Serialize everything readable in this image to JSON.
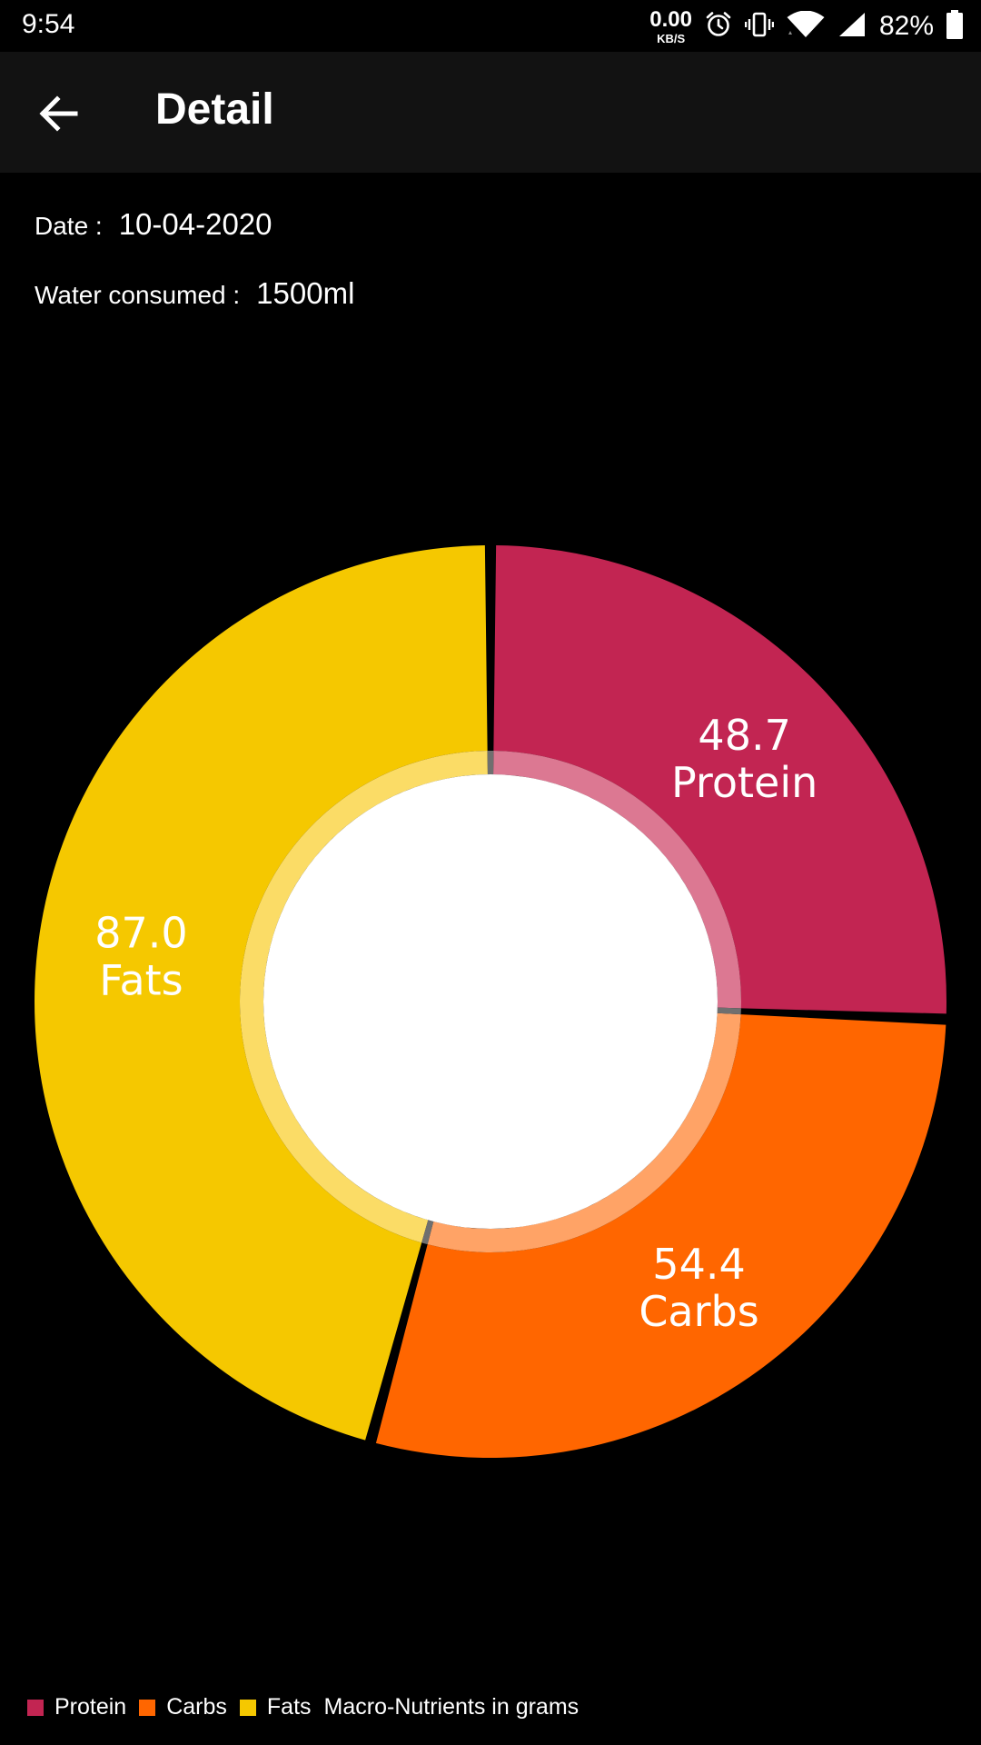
{
  "status_bar": {
    "time": "9:54",
    "net_speed_value": "0.00",
    "net_speed_unit": "KB/S",
    "battery": "82%",
    "icons": [
      "alarm-icon",
      "vibrate-icon",
      "wifi-icon",
      "signal-icon",
      "battery-icon"
    ]
  },
  "app_bar": {
    "title": "Detail",
    "back_icon": "arrow-left-icon"
  },
  "info": {
    "date_label": "Date :",
    "date_value": "10-04-2020",
    "water_label": "Water consumed :",
    "water_value": "1500ml"
  },
  "chart_data": {
    "type": "pie",
    "donut": true,
    "categories": [
      "Protein",
      "Carbs",
      "Fats"
    ],
    "values": [
      48.7,
      54.4,
      87.0
    ],
    "colors": [
      "#C22552",
      "#FF6600",
      "#F5C800"
    ],
    "inner_ring_colors": [
      "#DC7892",
      "#FFA366",
      "#FBDC66"
    ],
    "center_color": "#FFFFFF",
    "legend": [
      "Protein",
      "Carbs",
      "Fats"
    ],
    "legend_placement": "bottom-left",
    "description": "Macro-Nutrients in grams"
  }
}
